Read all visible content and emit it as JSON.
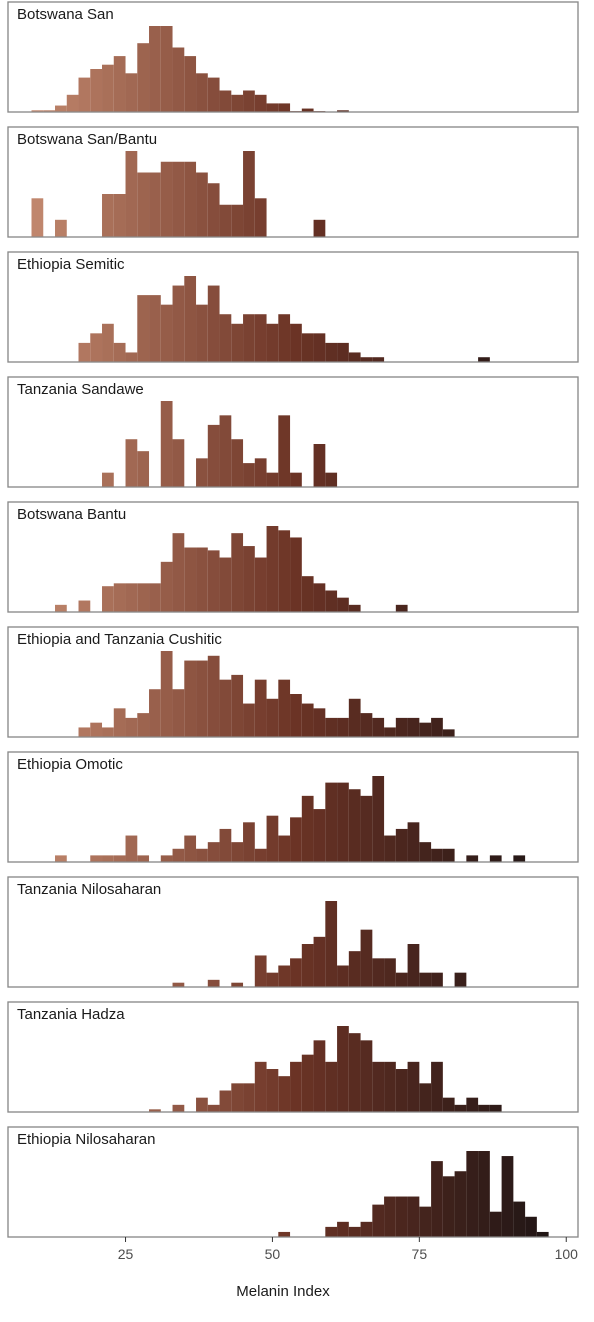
{
  "chart_data": {
    "type": "bar",
    "subtype": "faceted-histogram",
    "xlabel": "Melanin Index",
    "xlim": [
      5,
      102
    ],
    "x_ticks": [
      25,
      50,
      75,
      100
    ],
    "tick_labels": [
      "25",
      "50",
      "75",
      "100"
    ],
    "bin_width": 2,
    "grid": false,
    "color_scale": {
      "low": "#c48a70",
      "mid": "#6b3325",
      "high": "#1a1314",
      "domain": [
        8,
        100
      ]
    },
    "panel_border_color": "#8a8a8a",
    "panels": [
      {
        "name": "Botswana San",
        "bins": [
          [
            9,
            0.4
          ],
          [
            11,
            0.4
          ],
          [
            13,
            1.5
          ],
          [
            15,
            4
          ],
          [
            17,
            8
          ],
          [
            19,
            10
          ],
          [
            21,
            11
          ],
          [
            23,
            13
          ],
          [
            25,
            9
          ],
          [
            27,
            16
          ],
          [
            29,
            20
          ],
          [
            31,
            20
          ],
          [
            33,
            15
          ],
          [
            35,
            13
          ],
          [
            37,
            9
          ],
          [
            39,
            8
          ],
          [
            41,
            5
          ],
          [
            43,
            4
          ],
          [
            45,
            5
          ],
          [
            47,
            4
          ],
          [
            49,
            2
          ],
          [
            51,
            2
          ],
          [
            53,
            0.2
          ],
          [
            55,
            0.8
          ],
          [
            57,
            0.2
          ],
          [
            61,
            0.4
          ]
        ]
      },
      {
        "name": "Botswana San/Bantu",
        "bins": [
          [
            9,
            1.8
          ],
          [
            11,
            0
          ],
          [
            13,
            0.8
          ],
          [
            21,
            2
          ],
          [
            23,
            2
          ],
          [
            25,
            4
          ],
          [
            27,
            3
          ],
          [
            29,
            3
          ],
          [
            31,
            3.5
          ],
          [
            33,
            3.5
          ],
          [
            35,
            3.5
          ],
          [
            37,
            3
          ],
          [
            39,
            2.5
          ],
          [
            41,
            1.5
          ],
          [
            43,
            1.5
          ],
          [
            45,
            4
          ],
          [
            47,
            1.8
          ],
          [
            57,
            0.8
          ]
        ]
      },
      {
        "name": "Ethiopia Semitic",
        "bins": [
          [
            17,
            2
          ],
          [
            19,
            3
          ],
          [
            21,
            4
          ],
          [
            23,
            2
          ],
          [
            25,
            1
          ],
          [
            27,
            7
          ],
          [
            29,
            7
          ],
          [
            31,
            6
          ],
          [
            33,
            8
          ],
          [
            35,
            9
          ],
          [
            37,
            6
          ],
          [
            39,
            8
          ],
          [
            41,
            5
          ],
          [
            43,
            4
          ],
          [
            45,
            5
          ],
          [
            47,
            5
          ],
          [
            49,
            4
          ],
          [
            51,
            5
          ],
          [
            53,
            4
          ],
          [
            55,
            3
          ],
          [
            57,
            3
          ],
          [
            59,
            2
          ],
          [
            61,
            2
          ],
          [
            63,
            1
          ],
          [
            65,
            0.5
          ],
          [
            67,
            0.5
          ],
          [
            85,
            0.5
          ]
        ]
      },
      {
        "name": "Tanzania Sandawe",
        "bins": [
          [
            21,
            0.6
          ],
          [
            25,
            2
          ],
          [
            27,
            1.5
          ],
          [
            31,
            3.6
          ],
          [
            33,
            2
          ],
          [
            37,
            1.2
          ],
          [
            39,
            2.6
          ],
          [
            41,
            3
          ],
          [
            43,
            2
          ],
          [
            45,
            1
          ],
          [
            47,
            1.2
          ],
          [
            49,
            0.6
          ],
          [
            51,
            3
          ],
          [
            53,
            0.6
          ],
          [
            57,
            1.8
          ],
          [
            59,
            0.6
          ]
        ]
      },
      {
        "name": "Botswana Bantu",
        "bins": [
          [
            13,
            0.5
          ],
          [
            17,
            0.8
          ],
          [
            21,
            1.8
          ],
          [
            23,
            2
          ],
          [
            25,
            2
          ],
          [
            27,
            2
          ],
          [
            29,
            2
          ],
          [
            31,
            3.5
          ],
          [
            33,
            5.5
          ],
          [
            35,
            4.5
          ],
          [
            37,
            4.5
          ],
          [
            39,
            4.3
          ],
          [
            41,
            3.8
          ],
          [
            43,
            5.5
          ],
          [
            45,
            4.6
          ],
          [
            47,
            3.8
          ],
          [
            49,
            6
          ],
          [
            51,
            5.7
          ],
          [
            53,
            5.2
          ],
          [
            55,
            2.5
          ],
          [
            57,
            2
          ],
          [
            59,
            1.5
          ],
          [
            61,
            1
          ],
          [
            63,
            0.5
          ],
          [
            71,
            0.5
          ]
        ]
      },
      {
        "name": "Ethiopia and Tanzania Cushitic",
        "bins": [
          [
            17,
            1
          ],
          [
            19,
            1.5
          ],
          [
            21,
            1
          ],
          [
            23,
            3
          ],
          [
            25,
            2
          ],
          [
            27,
            2.5
          ],
          [
            29,
            5
          ],
          [
            31,
            9
          ],
          [
            33,
            5
          ],
          [
            35,
            8
          ],
          [
            37,
            8
          ],
          [
            39,
            8.5
          ],
          [
            41,
            6
          ],
          [
            43,
            6.5
          ],
          [
            45,
            3.5
          ],
          [
            47,
            6
          ],
          [
            49,
            4
          ],
          [
            51,
            6
          ],
          [
            53,
            4.5
          ],
          [
            55,
            3.5
          ],
          [
            57,
            3
          ],
          [
            59,
            2
          ],
          [
            61,
            2
          ],
          [
            63,
            4
          ],
          [
            65,
            2.5
          ],
          [
            67,
            2
          ],
          [
            69,
            1
          ],
          [
            71,
            2
          ],
          [
            73,
            2
          ],
          [
            75,
            1.5
          ],
          [
            77,
            2
          ],
          [
            79,
            0.8
          ]
        ]
      },
      {
        "name": "Ethiopia Omotic",
        "bins": [
          [
            13,
            0.8
          ],
          [
            19,
            0.8
          ],
          [
            21,
            0.8
          ],
          [
            23,
            0.8
          ],
          [
            25,
            3.2
          ],
          [
            27,
            0.8
          ],
          [
            31,
            0.8
          ],
          [
            33,
            1.6
          ],
          [
            35,
            3.2
          ],
          [
            37,
            1.6
          ],
          [
            39,
            2.4
          ],
          [
            41,
            4
          ],
          [
            43,
            2.4
          ],
          [
            45,
            4.8
          ],
          [
            47,
            1.6
          ],
          [
            49,
            5.6
          ],
          [
            51,
            3.2
          ],
          [
            53,
            5.4
          ],
          [
            55,
            8
          ],
          [
            57,
            6.4
          ],
          [
            59,
            9.6
          ],
          [
            61,
            9.6
          ],
          [
            63,
            8.8
          ],
          [
            65,
            8
          ],
          [
            67,
            10.4
          ],
          [
            69,
            3.2
          ],
          [
            71,
            4
          ],
          [
            73,
            4.8
          ],
          [
            75,
            2.4
          ],
          [
            77,
            1.6
          ],
          [
            79,
            1.6
          ],
          [
            83,
            0.8
          ],
          [
            87,
            0.8
          ],
          [
            91,
            0.8
          ]
        ]
      },
      {
        "name": "Tanzania Nilosaharan",
        "bins": [
          [
            33,
            0.3
          ],
          [
            39,
            0.5
          ],
          [
            43,
            0.3
          ],
          [
            47,
            2.2
          ],
          [
            49,
            1
          ],
          [
            51,
            1.5
          ],
          [
            53,
            2
          ],
          [
            55,
            3
          ],
          [
            57,
            3.5
          ],
          [
            59,
            6
          ],
          [
            61,
            1.5
          ],
          [
            63,
            2.5
          ],
          [
            65,
            4
          ],
          [
            67,
            2
          ],
          [
            69,
            2
          ],
          [
            71,
            1
          ],
          [
            73,
            3
          ],
          [
            75,
            1
          ],
          [
            77,
            1
          ],
          [
            81,
            1
          ]
        ]
      },
      {
        "name": "Tanzania Hadza",
        "bins": [
          [
            29,
            0.3
          ],
          [
            33,
            0.8
          ],
          [
            37,
            1.6
          ],
          [
            39,
            0.8
          ],
          [
            41,
            2.4
          ],
          [
            43,
            3.2
          ],
          [
            45,
            3.2
          ],
          [
            47,
            5.6
          ],
          [
            49,
            4.8
          ],
          [
            51,
            4
          ],
          [
            53,
            5.6
          ],
          [
            55,
            6.4
          ],
          [
            57,
            8
          ],
          [
            59,
            5.6
          ],
          [
            61,
            9.6
          ],
          [
            63,
            8.8
          ],
          [
            65,
            8
          ],
          [
            67,
            5.6
          ],
          [
            69,
            5.6
          ],
          [
            71,
            4.8
          ],
          [
            73,
            5.6
          ],
          [
            75,
            3.2
          ],
          [
            77,
            5.6
          ],
          [
            79,
            1.6
          ],
          [
            81,
            0.8
          ],
          [
            83,
            1.6
          ],
          [
            85,
            0.8
          ],
          [
            87,
            0.8
          ]
        ]
      },
      {
        "name": "Ethiopia Nilosaharan",
        "bins": [
          [
            51,
            0.5
          ],
          [
            59,
            1
          ],
          [
            61,
            1.5
          ],
          [
            63,
            1
          ],
          [
            65,
            1.5
          ],
          [
            67,
            3.2
          ],
          [
            69,
            4
          ],
          [
            71,
            4
          ],
          [
            73,
            4
          ],
          [
            75,
            3
          ],
          [
            77,
            7.5
          ],
          [
            79,
            6
          ],
          [
            81,
            6.5
          ],
          [
            83,
            8.5
          ],
          [
            85,
            8.5
          ],
          [
            87,
            2.5
          ],
          [
            89,
            8
          ],
          [
            91,
            3.5
          ],
          [
            93,
            2
          ],
          [
            95,
            0.5
          ]
        ]
      }
    ]
  }
}
